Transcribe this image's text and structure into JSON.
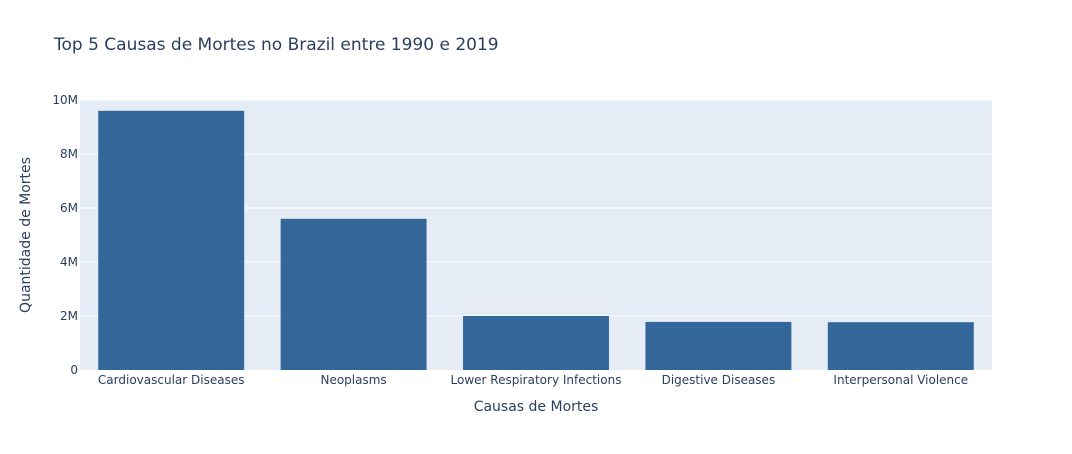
{
  "chart_data": {
    "type": "bar",
    "title": "Top 5 Causas de Mortes no Brazil entre 1990 e 2019",
    "xlabel": "Causas de Mortes",
    "ylabel": "Quantidade de Mortes",
    "categories": [
      "Cardiovascular Diseases",
      "Neoplasms",
      "Lower Respiratory Infections",
      "Digestive Diseases",
      "Interpersonal Violence"
    ],
    "values": [
      9600000,
      5600000,
      2000000,
      1780000,
      1770000
    ],
    "ylim": [
      0,
      10000000
    ],
    "yticks": [
      0,
      2000000,
      4000000,
      6000000,
      8000000,
      10000000
    ],
    "ytick_labels": [
      "0",
      "2M",
      "4M",
      "6M",
      "8M",
      "10M"
    ],
    "grid": true,
    "legend": false,
    "colors": {
      "bar": "#336699",
      "plot_background": "#e5ecf6",
      "grid": "#ffffff",
      "text": "#2a3f5f"
    }
  }
}
